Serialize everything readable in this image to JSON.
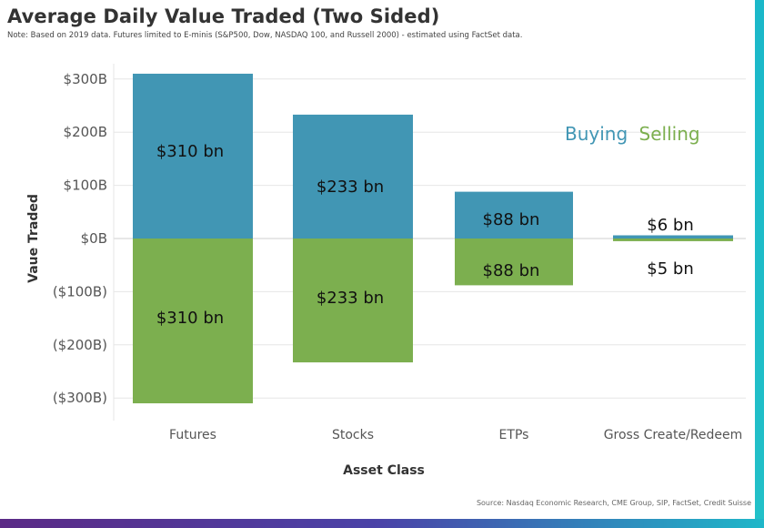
{
  "header": {
    "title": "Average Daily Value Traded (Two Sided)",
    "note": "Note: Based on 2019 data. Futures limited to E-minis (S&P500, Dow, NASDAQ 100, and Russell 2000) - estimated using FactSet data.",
    "source": "Source: Nasdaq Economic Research, CME Group, SIP, FactSet, Credit Suisse"
  },
  "colors": {
    "buying": "#4196b4",
    "selling": "#7caf4f",
    "gridline": "#e6e6e6",
    "zero_line": "#cfcfcf"
  },
  "chart_data": {
    "type": "bar",
    "title": "Average Daily Value Traded (Two Sided)",
    "xlabel": "Asset Class",
    "ylabel": "Vaue Traded",
    "categories": [
      "Futures",
      "Stocks",
      "ETPs",
      "Gross Create/Redeem"
    ],
    "series": [
      {
        "name": "Buying",
        "values": [
          310,
          233,
          88,
          6
        ],
        "labels": [
          "$310 bn",
          "$233 bn",
          "$88 bn",
          "$6 bn"
        ]
      },
      {
        "name": "Selling",
        "values": [
          -310,
          -233,
          -88,
          -5
        ],
        "labels": [
          "$310 bn",
          "$233 bn",
          "$88 bn",
          "$5 bn"
        ]
      }
    ],
    "ylim": [
      -340,
      310
    ],
    "yticks": [
      300,
      200,
      100,
      0,
      -100,
      -200,
      -300
    ],
    "ytick_labels": [
      "$300B",
      "$200B",
      "$100B",
      "$0B",
      "($100B)",
      "($200B)",
      "($300B)"
    ],
    "legend": [
      "Buying",
      "Selling"
    ],
    "legend_position": "top-right",
    "grid": true
  }
}
